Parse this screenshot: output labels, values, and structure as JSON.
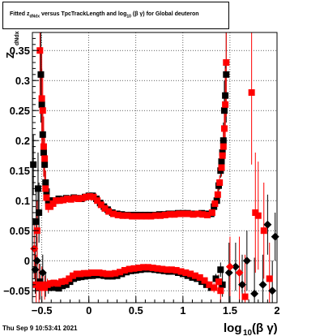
{
  "chart_data": {
    "type": "scatter",
    "title_parts": {
      "pre": "Fitted  z",
      "sub": "dNdx",
      "mid": "  versus TpcTrackLength and log",
      "sub2": "10",
      "post": " (β γ) for Global deuteron"
    },
    "ylabel": "Z",
    "ylabel_sub": "dNdx",
    "xlabel": "log",
    "xlabel_sub": "10",
    "xlabel_post": " (β γ)",
    "xlim": [
      -0.6,
      2.0
    ],
    "ylim": [
      -0.07,
      0.38
    ],
    "x_ticks": [
      -0.5,
      0,
      0.5,
      1,
      1.5,
      2
    ],
    "x_tick_labels": [
      "−0.5",
      "0",
      "0.5",
      "1",
      "1.5",
      "2"
    ],
    "y_ticks": [
      -0.05,
      0,
      0.05,
      0.1,
      0.15,
      0.2,
      0.25,
      0.3,
      0.35
    ],
    "y_tick_labels": [
      "−0.05",
      "0",
      "0.05",
      "0.1",
      "0.15",
      "0.2",
      "0.25",
      "0.3",
      "0.35"
    ],
    "y_tick_top_label": "0.35",
    "grid": true,
    "series": [
      {
        "color": "#000000",
        "points": [
          [
            -0.59,
            0.16,
            0.05
          ],
          [
            -0.56,
            0.065,
            0.05
          ],
          [
            -0.54,
            0.12,
            0.06
          ],
          [
            -0.53,
            0.08,
            0.05
          ],
          [
            -0.51,
            0.31,
            0.08
          ],
          [
            -0.5,
            0.26,
            0.06
          ],
          [
            -0.49,
            0.21,
            0.05
          ],
          [
            -0.48,
            0.18,
            0.04
          ],
          [
            -0.47,
            0.16,
            0.03
          ],
          [
            -0.46,
            0.13,
            0.02
          ],
          [
            -0.45,
            0.115,
            0.01
          ],
          [
            -0.43,
            0.1,
            0.005
          ],
          [
            -0.4,
            0.1,
            0.004
          ],
          [
            -0.36,
            0.1,
            0.004
          ],
          [
            -0.32,
            0.103,
            0.004
          ],
          [
            -0.28,
            0.102,
            0.003
          ],
          [
            -0.24,
            0.104,
            0.003
          ],
          [
            -0.2,
            0.103,
            0.003
          ],
          [
            -0.16,
            0.105,
            0.003
          ],
          [
            -0.12,
            0.104,
            0.003
          ],
          [
            -0.08,
            0.103,
            0.003
          ],
          [
            -0.04,
            0.106,
            0.003
          ],
          [
            0.0,
            0.108,
            0.003
          ],
          [
            0.04,
            0.108,
            0.003
          ],
          [
            0.08,
            0.103,
            0.003
          ],
          [
            0.12,
            0.096,
            0.003
          ],
          [
            0.16,
            0.09,
            0.003
          ],
          [
            0.2,
            0.085,
            0.003
          ],
          [
            0.25,
            0.08,
            0.003
          ],
          [
            0.3,
            0.078,
            0.003
          ],
          [
            0.35,
            0.077,
            0.003
          ],
          [
            0.4,
            0.076,
            0.003
          ],
          [
            0.45,
            0.076,
            0.003
          ],
          [
            0.5,
            0.076,
            0.003
          ],
          [
            0.55,
            0.076,
            0.003
          ],
          [
            0.6,
            0.076,
            0.003
          ],
          [
            0.65,
            0.076,
            0.003
          ],
          [
            0.7,
            0.076,
            0.003
          ],
          [
            0.75,
            0.077,
            0.003
          ],
          [
            0.8,
            0.077,
            0.003
          ],
          [
            0.85,
            0.078,
            0.003
          ],
          [
            0.9,
            0.078,
            0.003
          ],
          [
            0.95,
            0.079,
            0.003
          ],
          [
            1.0,
            0.079,
            0.003
          ],
          [
            1.05,
            0.079,
            0.003
          ],
          [
            1.1,
            0.078,
            0.003
          ],
          [
            1.15,
            0.078,
            0.003
          ],
          [
            1.2,
            0.079,
            0.003
          ],
          [
            1.25,
            0.078,
            0.003
          ],
          [
            1.3,
            0.078,
            0.004
          ],
          [
            1.33,
            0.09,
            0.006
          ],
          [
            1.36,
            0.1,
            0.008
          ],
          [
            1.38,
            0.125,
            0.01
          ],
          [
            1.4,
            0.15,
            0.012
          ],
          [
            1.41,
            0.165,
            0.015
          ],
          [
            1.42,
            0.18,
            0.02
          ],
          [
            1.43,
            0.2,
            0.03
          ],
          [
            1.44,
            0.25,
            0.05
          ],
          [
            1.45,
            0.275,
            0.06
          ],
          [
            1.46,
            0.31,
            0.08
          ],
          [
            1.49,
            -0.02,
            0.05
          ],
          [
            1.56,
            -0.01,
            0.04
          ],
          [
            1.63,
            -0.04,
            0.05
          ],
          [
            1.68,
            0.0,
            0.05
          ],
          [
            1.76,
            -0.055,
            0.06
          ],
          [
            1.85,
            -0.04,
            0.05
          ],
          [
            1.9,
            0.06,
            0.05
          ],
          [
            1.95,
            -0.05,
            0.05
          ],
          [
            1.98,
            0.04,
            0.04
          ],
          [
            -0.57,
            -0.015,
            0.04
          ],
          [
            -0.55,
            0.0,
            0.04
          ],
          [
            -0.52,
            -0.035,
            0.03
          ],
          [
            -0.49,
            -0.02,
            0.03
          ],
          [
            -0.46,
            -0.04,
            0.02
          ],
          [
            -0.43,
            -0.045,
            0.01
          ],
          [
            -0.4,
            -0.045,
            0.006
          ],
          [
            -0.36,
            -0.045,
            0.005
          ],
          [
            -0.32,
            -0.046,
            0.004
          ],
          [
            -0.28,
            -0.042,
            0.004
          ],
          [
            -0.24,
            -0.04,
            0.004
          ],
          [
            -0.2,
            -0.035,
            0.003
          ],
          [
            -0.16,
            -0.03,
            0.003
          ],
          [
            -0.12,
            -0.028,
            0.003
          ],
          [
            -0.08,
            -0.027,
            0.003
          ],
          [
            -0.04,
            -0.026,
            0.003
          ],
          [
            0.0,
            -0.025,
            0.003
          ],
          [
            0.04,
            -0.025,
            0.003
          ],
          [
            0.08,
            -0.024,
            0.003
          ],
          [
            0.12,
            -0.024,
            0.003
          ],
          [
            0.16,
            -0.025,
            0.003
          ],
          [
            0.2,
            -0.026,
            0.003
          ],
          [
            0.25,
            -0.026,
            0.003
          ],
          [
            0.3,
            -0.025,
            0.003
          ],
          [
            0.35,
            -0.022,
            0.003
          ],
          [
            0.4,
            -0.019,
            0.003
          ],
          [
            0.45,
            -0.017,
            0.003
          ],
          [
            0.5,
            -0.016,
            0.003
          ],
          [
            0.55,
            -0.015,
            0.003
          ],
          [
            0.6,
            -0.014,
            0.003
          ],
          [
            0.65,
            -0.014,
            0.003
          ],
          [
            0.7,
            -0.015,
            0.003
          ],
          [
            0.75,
            -0.016,
            0.003
          ],
          [
            0.8,
            -0.017,
            0.003
          ],
          [
            0.85,
            -0.018,
            0.003
          ],
          [
            0.9,
            -0.018,
            0.003
          ],
          [
            0.95,
            -0.02,
            0.003
          ],
          [
            1.0,
            -0.022,
            0.003
          ],
          [
            1.05,
            -0.025,
            0.003
          ],
          [
            1.1,
            -0.028,
            0.003
          ],
          [
            1.15,
            -0.03,
            0.003
          ],
          [
            1.2,
            -0.035,
            0.004
          ],
          [
            1.25,
            -0.04,
            0.004
          ],
          [
            1.3,
            -0.045,
            0.005
          ],
          [
            1.35,
            -0.03,
            0.008
          ],
          [
            1.4,
            -0.015,
            0.012
          ],
          [
            1.42,
            -0.04,
            0.02
          ]
        ]
      },
      {
        "color": "#ff0000",
        "points": [
          [
            -0.58,
            0.02,
            0.05
          ],
          [
            -0.55,
            0.05,
            0.05
          ],
          [
            -0.52,
            0.35,
            0.1
          ],
          [
            -0.5,
            0.27,
            0.08
          ],
          [
            -0.49,
            0.25,
            0.06
          ],
          [
            -0.48,
            0.19,
            0.05
          ],
          [
            -0.47,
            0.17,
            0.04
          ],
          [
            -0.46,
            0.12,
            0.03
          ],
          [
            -0.45,
            0.105,
            0.02
          ],
          [
            -0.43,
            0.09,
            0.01
          ],
          [
            -0.41,
            0.09,
            0.005
          ],
          [
            -0.38,
            0.095,
            0.004
          ],
          [
            -0.35,
            0.1,
            0.004
          ],
          [
            -0.31,
            0.1,
            0.004
          ],
          [
            -0.27,
            0.101,
            0.003
          ],
          [
            -0.23,
            0.103,
            0.003
          ],
          [
            -0.19,
            0.102,
            0.003
          ],
          [
            -0.15,
            0.104,
            0.003
          ],
          [
            -0.11,
            0.103,
            0.003
          ],
          [
            -0.07,
            0.104,
            0.003
          ],
          [
            -0.03,
            0.106,
            0.003
          ],
          [
            0.01,
            0.107,
            0.003
          ],
          [
            0.05,
            0.106,
            0.003
          ],
          [
            0.09,
            0.1,
            0.003
          ],
          [
            0.13,
            0.093,
            0.003
          ],
          [
            0.17,
            0.087,
            0.003
          ],
          [
            0.21,
            0.082,
            0.003
          ],
          [
            0.26,
            0.078,
            0.003
          ],
          [
            0.31,
            0.076,
            0.003
          ],
          [
            0.36,
            0.075,
            0.003
          ],
          [
            0.41,
            0.075,
            0.003
          ],
          [
            0.46,
            0.074,
            0.003
          ],
          [
            0.51,
            0.074,
            0.003
          ],
          [
            0.56,
            0.074,
            0.003
          ],
          [
            0.61,
            0.074,
            0.003
          ],
          [
            0.66,
            0.074,
            0.003
          ],
          [
            0.71,
            0.075,
            0.003
          ],
          [
            0.76,
            0.075,
            0.003
          ],
          [
            0.81,
            0.076,
            0.003
          ],
          [
            0.86,
            0.077,
            0.003
          ],
          [
            0.91,
            0.077,
            0.003
          ],
          [
            0.96,
            0.078,
            0.003
          ],
          [
            1.01,
            0.078,
            0.003
          ],
          [
            1.06,
            0.078,
            0.003
          ],
          [
            1.11,
            0.077,
            0.003
          ],
          [
            1.16,
            0.078,
            0.003
          ],
          [
            1.21,
            0.077,
            0.003
          ],
          [
            1.26,
            0.076,
            0.003
          ],
          [
            1.31,
            0.08,
            0.005
          ],
          [
            1.34,
            0.095,
            0.008
          ],
          [
            1.37,
            0.11,
            0.01
          ],
          [
            1.39,
            0.13,
            0.012
          ],
          [
            1.41,
            0.155,
            0.015
          ],
          [
            1.42,
            0.175,
            0.02
          ],
          [
            1.43,
            0.19,
            0.03
          ],
          [
            1.44,
            0.22,
            0.04
          ],
          [
            1.45,
            0.26,
            0.06
          ],
          [
            1.46,
            0.33,
            0.09
          ],
          [
            1.5,
            -0.01,
            0.05
          ],
          [
            1.6,
            -0.02,
            0.06
          ],
          [
            1.66,
            -0.06,
            0.07
          ],
          [
            1.73,
            0.28,
            0.12
          ],
          [
            1.77,
            0.08,
            0.1
          ],
          [
            1.8,
            0.075,
            0.09
          ],
          [
            1.86,
            0.05,
            0.08
          ],
          [
            1.92,
            -0.03,
            0.06
          ],
          [
            -0.56,
            -0.04,
            0.05
          ],
          [
            -0.53,
            -0.045,
            0.04
          ],
          [
            -0.5,
            -0.04,
            0.03
          ],
          [
            -0.47,
            -0.045,
            0.02
          ],
          [
            -0.44,
            -0.04,
            0.01
          ],
          [
            -0.41,
            -0.038,
            0.006
          ],
          [
            -0.37,
            -0.037,
            0.005
          ],
          [
            -0.33,
            -0.038,
            0.004
          ],
          [
            -0.29,
            -0.035,
            0.004
          ],
          [
            -0.25,
            -0.034,
            0.004
          ],
          [
            -0.21,
            -0.03,
            0.003
          ],
          [
            -0.17,
            -0.025,
            0.003
          ],
          [
            -0.13,
            -0.022,
            0.003
          ],
          [
            -0.09,
            -0.022,
            0.003
          ],
          [
            -0.05,
            -0.021,
            0.003
          ],
          [
            -0.01,
            -0.021,
            0.003
          ],
          [
            0.03,
            -0.02,
            0.003
          ],
          [
            0.07,
            -0.02,
            0.003
          ],
          [
            0.11,
            -0.02,
            0.003
          ],
          [
            0.15,
            -0.021,
            0.003
          ],
          [
            0.19,
            -0.022,
            0.003
          ],
          [
            0.23,
            -0.022,
            0.003
          ],
          [
            0.28,
            -0.021,
            0.003
          ],
          [
            0.33,
            -0.019,
            0.003
          ],
          [
            0.38,
            -0.016,
            0.003
          ],
          [
            0.43,
            -0.014,
            0.003
          ],
          [
            0.48,
            -0.013,
            0.003
          ],
          [
            0.53,
            -0.012,
            0.003
          ],
          [
            0.58,
            -0.011,
            0.003
          ],
          [
            0.63,
            -0.011,
            0.003
          ],
          [
            0.68,
            -0.012,
            0.003
          ],
          [
            0.73,
            -0.013,
            0.003
          ],
          [
            0.78,
            -0.014,
            0.003
          ],
          [
            0.83,
            -0.015,
            0.003
          ],
          [
            0.88,
            -0.015,
            0.003
          ],
          [
            0.93,
            -0.016,
            0.003
          ],
          [
            0.98,
            -0.018,
            0.003
          ],
          [
            1.03,
            -0.02,
            0.003
          ],
          [
            1.08,
            -0.022,
            0.003
          ],
          [
            1.13,
            -0.025,
            0.003
          ],
          [
            1.18,
            -0.028,
            0.004
          ],
          [
            1.23,
            -0.033,
            0.004
          ],
          [
            1.28,
            -0.04,
            0.005
          ],
          [
            1.33,
            -0.045,
            0.008
          ],
          [
            1.38,
            -0.035,
            0.012
          ],
          [
            1.4,
            -0.05,
            0.02
          ]
        ]
      }
    ]
  },
  "footer": {
    "timestamp": "Thu Sep  9 10:53:41 2021"
  }
}
